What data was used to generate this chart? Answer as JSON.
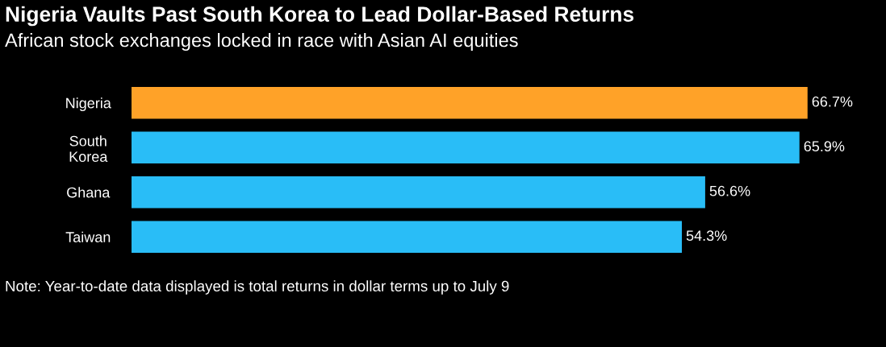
{
  "chart_data": {
    "type": "bar",
    "orientation": "horizontal",
    "title": "Nigeria Vaults Past South Korea to Lead Dollar-Based Returns",
    "subtitle": "African stock exchanges locked in race with Asian AI equities",
    "categories": [
      "Nigeria",
      "South\nKorea",
      "Ghana",
      "Taiwan"
    ],
    "values": [
      66.7,
      65.9,
      56.6,
      54.3
    ],
    "colors": [
      "#ffa228",
      "#29bdf7",
      "#29bdf7",
      "#29bdf7"
    ],
    "value_labels": [
      "66.7%",
      "65.9%",
      "56.6%",
      "54.3%"
    ],
    "annotations": [
      "Note: Year-to-date data displayed is total returns in dollar terms up to July 9"
    ],
    "grid": false,
    "legend": false
  }
}
